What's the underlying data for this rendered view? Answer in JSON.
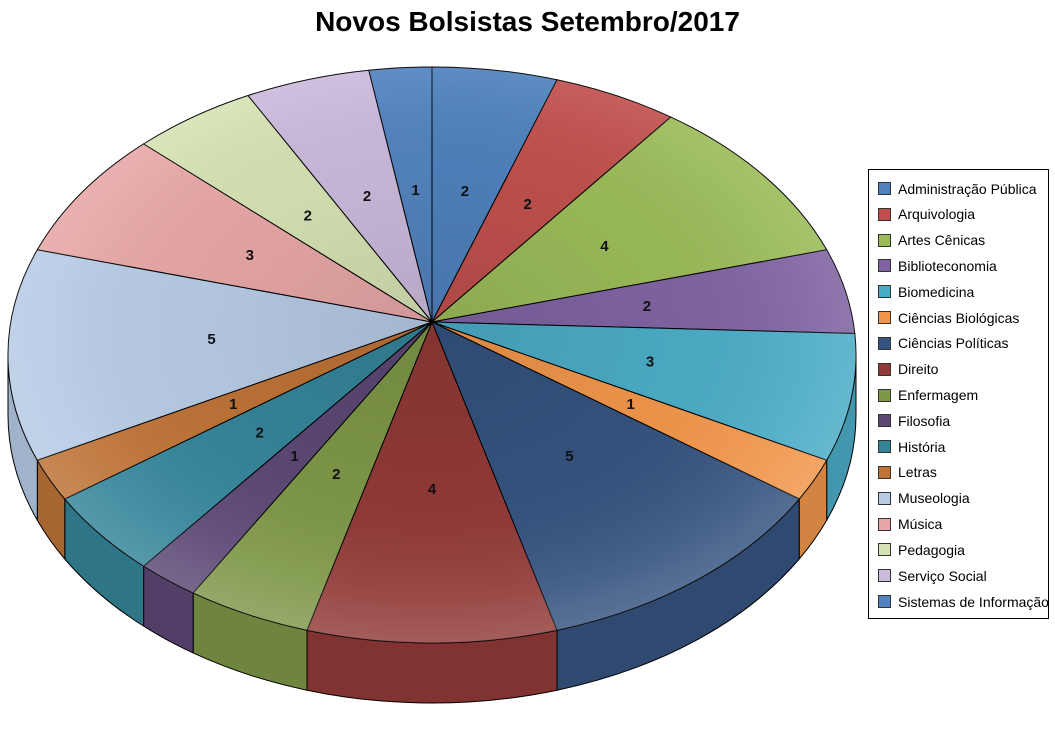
{
  "chart_data": {
    "type": "pie",
    "is_3d": true,
    "title": "Novos Bolsistas Setembro/2017",
    "direction": "clockwise",
    "start_angle_deg": 0,
    "total": 42,
    "legend_position": "right",
    "data_labels": "value",
    "background_color": "#FFFFFF",
    "outline_color": "#000000",
    "categories": [
      "Administração Pública",
      "Arquivologia",
      "Artes Cênicas",
      "Biblioteconomia",
      "Biomedicina",
      "Ciências Biológicas",
      "Ciências Políticas",
      "Direito",
      "Enfermagem",
      "Filosofia",
      "História",
      "Letras",
      "Museologia",
      "Música",
      "Pedagogia",
      "Serviço Social",
      "Sistemas de Informação"
    ],
    "values": [
      2,
      2,
      4,
      2,
      3,
      1,
      5,
      4,
      2,
      1,
      2,
      1,
      5,
      3,
      2,
      2,
      1
    ],
    "colors": [
      "#4F81BD",
      "#C0504D",
      "#9BBB59",
      "#8064A2",
      "#4BACC6",
      "#F1964B",
      "#35537F",
      "#913A37",
      "#7E9748",
      "#5C4875",
      "#35859A",
      "#BE7337",
      "#B7CBE5",
      "#E7A7A6",
      "#D5E2B3",
      "#CABADB",
      "#5283BF"
    ]
  }
}
